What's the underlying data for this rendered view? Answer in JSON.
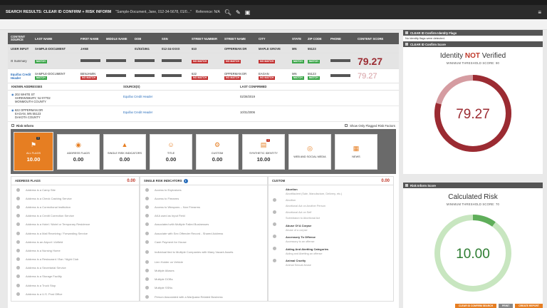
{
  "topbar": {
    "title": "SEARCH RESULTS: CLEAR ID CONFIRM + RISK INFORM",
    "query": "\"Sample-Document, Jane, 012-34-5678, 01/0...\"",
    "reference": "Reference: N/A"
  },
  "results": {
    "headers": [
      "CONTENT SOURCE",
      "LAST NAME",
      "FIRST NAME",
      "MIDDLE NAME",
      "DOB",
      "SSN",
      "STREET NUMBER",
      "STREET NAME",
      "CITY",
      "STATE",
      "ZIP CODE",
      "PHONE",
      "CONTENT SCORE"
    ],
    "user_input": {
      "source": "USER INPUT",
      "last": "SAMPLE-DOCUMENT",
      "first": "JANE",
      "dob": "01/03/1961",
      "ssn": "012-34-XXXX",
      "street_num": "610",
      "street_name": "OPPERMAN DR",
      "city": "MAPLE GROVE",
      "state": "MN",
      "zip": "55123"
    },
    "summary": {
      "label": "Summary",
      "last": "MATCH",
      "street_num": "NO MATCH",
      "street_name": "NO MATCH",
      "city": "NO MATCH",
      "state": "MATCH",
      "zip": "MATCH",
      "score": "79.27"
    },
    "equifax": {
      "source": "Equifax Credit Header",
      "last": "SAMPLE-DOCUMENT",
      "last_tag": "MATCH",
      "first": "BENJAMIN",
      "first_tag": "NO MATCH",
      "street_num": "622",
      "street_num_tag": "NO MATCH",
      "street_name": "OPPERMAN DR",
      "street_name_tag": "NO MATCH",
      "city": "EAGAN",
      "city_tag": "NO MATCH",
      "state": "MN",
      "state_tag": "MATCH",
      "zip": "55123",
      "zip_tag": "MATCH",
      "score": "79.27"
    }
  },
  "addresses": {
    "headers": [
      "KNOWN ADDRESSES",
      "SOURCE(S)",
      "LAST CONFIRMED"
    ],
    "rows": [
      {
        "line1": "202 WHITE ST",
        "line2": "SHREWSBURY, NJ 07702",
        "line3": "MONMOUTH COUNTY",
        "source": "Equifax Credit Header",
        "date": "02/28/2019"
      },
      {
        "line1": "622 OPPERMAN DR",
        "line2": "EAGAN, MN 55123",
        "line3": "DAKOTA COUNTY",
        "source": "Equifax Credit Header",
        "date": "10/31/2006"
      }
    ]
  },
  "risk": {
    "title": "Risk Inform",
    "flag_only": "Show Only Flagged Risk Factors",
    "cards": [
      {
        "label": "ALL FLAGS",
        "value": "10.00",
        "badge": "7",
        "icon": "flag-icon"
      },
      {
        "label": "ADDRESS FLAGS",
        "value": "0.00",
        "icon": "location-icon"
      },
      {
        "label": "SINGLE RISK INDICATORS",
        "value": "0.00",
        "icon": "warning-icon"
      },
      {
        "label": "TITLE",
        "value": "0.00",
        "icon": "person-icon"
      },
      {
        "label": "CUSTOM",
        "value": "0.00",
        "icon": "gear-icon"
      },
      {
        "label": "SYNTHETIC IDENTITY",
        "value": "10.00",
        "badge": "7",
        "icon": "id-card-icon"
      },
      {
        "label": "WEB AND SOCIAL MEDIA",
        "value": "",
        "icon": "globe-icon"
      },
      {
        "label": "NEWS",
        "value": "",
        "icon": "news-icon"
      }
    ],
    "address_flags": {
      "title": "ADDRESS FLAGS",
      "value": "0.00",
      "items": [
        "Address is a Camp Site",
        "Address is a Check Cashing Service",
        "Address is a Correctional Institution",
        "Address is a Credit Correction Service",
        "Address is a Hotel / Motel or Temporary Residence",
        "Address is a Mail Receiving / Forwarding Service",
        "Address is an Airport / Airfield",
        "Address is a Nursing Home",
        "Address is a Restaurant / Bar / Night Club",
        "Address is a Secretarial Service",
        "Address is a Storage Facility",
        "Address is a Truck Stop",
        "Address is a U.S. Post Office"
      ]
    },
    "single_risk": {
      "title": "SINGLE RISK INDICATORS",
      "items": [
        "Access to Explosives",
        "Access to Firearms",
        "Access to Weapons – Non Firearms",
        "AKA used as Input Field",
        "Associated with Multiple Failed Businesses",
        "Associate with Sex Offender Record - Shared Address",
        "Cash Payment for House",
        "Individual tied to Multiple Companies with Many Vacant Assets",
        "Lien Holder on Vehicle",
        "Multiple Aliases",
        "Multiple DOBs",
        "Multiple SSNs",
        "Person Associated with a Marijuana Related Business"
      ]
    },
    "custom": {
      "title": "CUSTOM",
      "value": "0.00",
      "groups": [
        {
          "name": "Abortion",
          "subs": [
            "Abortifacient (Sale, Manufacture, Delivery, etc.)",
            "Abortion",
            "Abortional Act on Another Person",
            "Abortional Act on Self",
            "Submission to Abortional Act"
          ]
        },
        {
          "name": "Abuse Of A Corpse",
          "subs": [
            "Abuse of a corpse"
          ]
        },
        {
          "name": "Accessory To Offense",
          "subs": [
            "Accessory to an offense"
          ]
        },
        {
          "name": "Aiding And Abetting Categories",
          "subs": [
            "Aiding and Abetting an offense"
          ]
        },
        {
          "name": "Animal Cruelty",
          "subs": [
            "Animal Sexual Abuse"
          ]
        }
      ]
    }
  },
  "right": {
    "flags_panel": {
      "title": "CLEAR ID Confirm Identity Flags",
      "message": "No identity flags were detected."
    },
    "score_panel": {
      "title": "CLEAR ID Confirm Score",
      "heading_pre": "Identity ",
      "heading_not": "NOT",
      "heading_post": " Verified",
      "threshold": "MINIMUM THRESHOLD SCORE: 90",
      "score": "79.27",
      "fraction": 0.7927
    },
    "risk_panel": {
      "title": "Risk Inform Score",
      "heading": "Calculated Risk",
      "threshold": "MINIMUM THRESHOLD SCORE: 70",
      "score": "10.00",
      "fraction": 0.1
    }
  },
  "bottom": {
    "btn1": "CLEAR ID CONFIRM SEARCH",
    "btn2": "PRINT",
    "btn3": "CREATE REPORT"
  },
  "colors": {
    "accent": "#e67e22",
    "dark_red": "#9b2b32",
    "light_red": "#d59ca1",
    "green": "#5fae5a",
    "light_green": "#c8e6c0"
  }
}
